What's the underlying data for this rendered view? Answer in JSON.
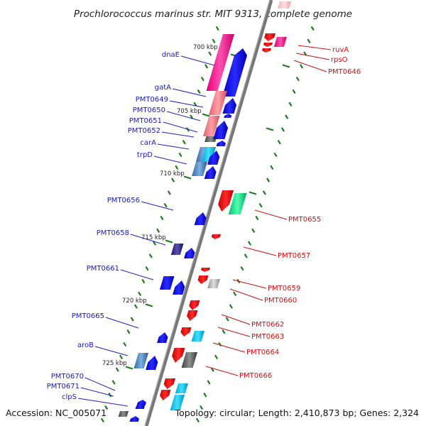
{
  "title": "Prochlorococcus marinus str. MIT 9313, complete genome",
  "footer": {
    "accession": "Accession: NC_005071",
    "summary": "Topology: circular; Length: 2,410,873 bp; Genes: 2,324"
  },
  "scale_labels": [
    "700 kbp",
    "705 kbp",
    "710 kbp",
    "715 kbp",
    "720 kbp",
    "725 kbp"
  ],
  "genes_left": [
    "dnaE",
    "gatA",
    "PMT0649",
    "PMT0650",
    "PMT0651",
    "PMT0652",
    "carA",
    "trpD",
    "PMT0656",
    "PMT0658",
    "PMT0661",
    "PMT0665",
    "aroB",
    "PMT0670",
    "PMT0671",
    "clpS"
  ],
  "genes_right": [
    "ruvA",
    "rpsO",
    "PMT0646",
    "PMT0655",
    "PMT0657",
    "PMT0659",
    "PMT0660",
    "PMT0662",
    "PMT0663",
    "PMT0664",
    "PMT0666"
  ],
  "colors": {
    "backbone": "#777777",
    "tick": "#1e7a1e",
    "forward_cds": "#0000ee",
    "reverse_cds": "#ee0000",
    "left_label": "#1a1ab4",
    "right_label": "#d01010"
  }
}
